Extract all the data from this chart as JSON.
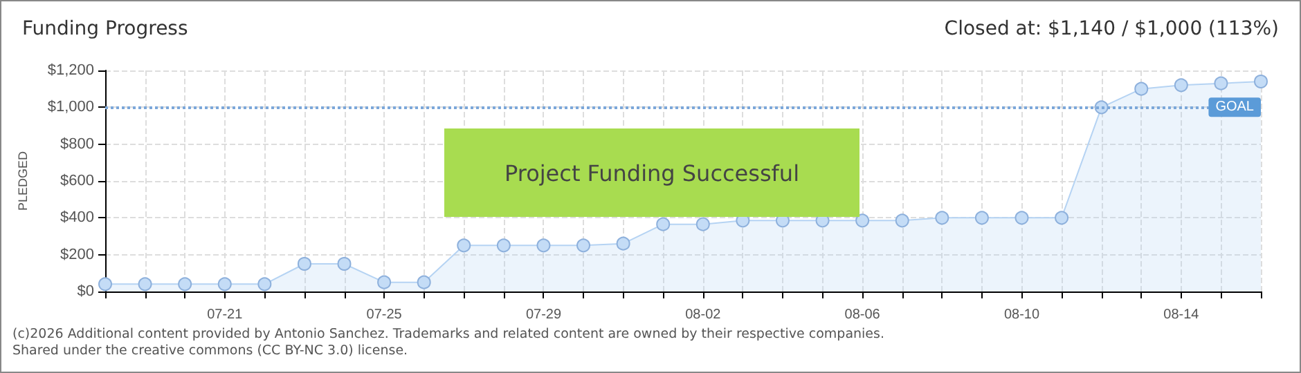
{
  "chart_data": {
    "type": "area",
    "title": "Funding Progress",
    "subtitle": "Closed at: $1,140 / $1,000 (113%)",
    "ylabel": "PLEDGED",
    "categories": [
      null,
      null,
      null,
      "07-21",
      null,
      null,
      null,
      "07-25",
      null,
      null,
      null,
      "07-29",
      null,
      null,
      null,
      "08-02",
      null,
      null,
      null,
      "08-06",
      null,
      null,
      null,
      "08-10",
      null,
      null,
      null,
      "08-14",
      null,
      null
    ],
    "series": [
      {
        "color": "#b5d3f3",
        "values": [
          40,
          40,
          40,
          40,
          40,
          150,
          150,
          50,
          50,
          250,
          250,
          250,
          250,
          260,
          365,
          365,
          385,
          385,
          385,
          385,
          385,
          400,
          400,
          400,
          400,
          1000,
          1100,
          1120,
          1130,
          1140
        ]
      }
    ],
    "ylim": [
      0,
      1200
    ],
    "yticks": [
      {
        "value": 0,
        "label": "$0"
      },
      {
        "value": 200,
        "label": "$200"
      },
      {
        "value": 400,
        "label": "$400"
      },
      {
        "value": 600,
        "label": "$600"
      },
      {
        "value": 800,
        "label": "$800"
      },
      {
        "value": 1000,
        "label": "$1,000"
      },
      {
        "value": 1200,
        "label": "$1,200"
      }
    ],
    "ref_lines": [
      {
        "axis": "y",
        "value": 1000,
        "label": "GOAL",
        "color": "#7ba7da",
        "line_style": "dotted"
      }
    ],
    "annotations": [
      "Project Funding Successful",
      "(c)2026 Additional content provided by Antonio Sanchez. Trademarks and related content are owned by their respective companies.",
      "Shared under the creative commons (CC BY-NC 3.0) license."
    ],
    "grid": true,
    "marker": "circle"
  }
}
